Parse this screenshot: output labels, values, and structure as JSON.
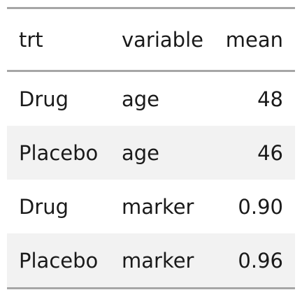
{
  "table": {
    "columns": [
      "trt",
      "variable",
      "mean"
    ],
    "rows": [
      {
        "trt": "Drug",
        "variable": "age",
        "mean": "48"
      },
      {
        "trt": "Placebo",
        "variable": "age",
        "mean": "46"
      },
      {
        "trt": "Drug",
        "variable": "marker",
        "mean": "0.90"
      },
      {
        "trt": "Placebo",
        "variable": "marker",
        "mean": "0.96"
      }
    ],
    "stripe_color": "#f2f2f2",
    "rule_color": "#a6a6a6"
  }
}
